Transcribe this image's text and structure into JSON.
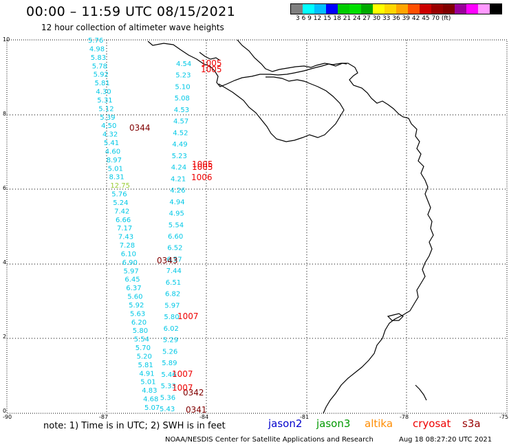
{
  "header": {
    "title": "00:00 – 11:59 UTC 08/15/2021",
    "subtitle": "12 hour collection of altimeter wave heights"
  },
  "legend": {
    "colors": [
      "#7f7f7f",
      "#00ffff",
      "#00bfff",
      "#0000ff",
      "#00cc00",
      "#00e000",
      "#00aa00",
      "#ffff00",
      "#ffd700",
      "#ffa500",
      "#ff5000",
      "#cc0000",
      "#990000",
      "#800000",
      "#990099",
      "#ff00ff",
      "#ff99ff",
      "#000000"
    ],
    "labels": "3  6  9  12 15 18 21 24 27 30 33 36 39 42 45 70 (ft)"
  },
  "axes": {
    "x_ticks": [
      "-90",
      "-87",
      "-84",
      "-81",
      "-78",
      "-75"
    ],
    "y_ticks": [
      "0",
      "2",
      "4",
      "6",
      "8",
      "10"
    ]
  },
  "footer": {
    "note": "note: 1) Time is in UTC; 2) SWH is in feet",
    "sat_jason2": "jason2",
    "sat_jason3": "jason3",
    "sat_altika": "altika",
    "sat_cryosat": "cryosat",
    "sat_s3a": "s3a",
    "credit": "NOAA/NESDIS Center for Satellite Applications and Research",
    "timestamp": "Aug 18 08:27:20 UTC 2021"
  },
  "track_labels": {
    "t0344": "0344",
    "t0343": "0343",
    "t0342": "0342",
    "t0341": "0341",
    "t1005a": "1005",
    "t1005b": "1005",
    "t1005c": "1005",
    "t1005d": "1005",
    "t1006": "1006",
    "t1007a": "1007",
    "t1007b": "1007",
    "t1007c": "1007"
  },
  "measurements_left": [
    "5.76",
    "4.98",
    "5.83",
    "5.78",
    "5.92",
    "5.81",
    "4.30",
    "5.31",
    "5.12",
    "5.39",
    "4.50",
    "4.32",
    "5.41",
    "4.60",
    "8.97",
    "5.01",
    "8.31",
    "12.75",
    "5.76",
    "5.24",
    "7.42",
    "6.66",
    "7.17",
    "7.43",
    "7.28",
    "6.10",
    "6.90",
    "5.97",
    "6.45",
    "6.37",
    "5.60",
    "5.92",
    "5.63",
    "6.20",
    "5.80",
    "5.54",
    "5.70",
    "5.20",
    "5.81",
    "4.91",
    "5.01",
    "4.83",
    "4.68",
    "5.07"
  ],
  "measurements_right": [
    "4.54",
    "5.23",
    "5.10",
    "5.08",
    "4.53",
    "4.57",
    "4.52",
    "4.49",
    "5.23",
    "4.24",
    "4.21",
    "4.26",
    "4.94",
    "4.95",
    "5.54",
    "6.60",
    "6.52",
    "6.57",
    "7.44",
    "6.51",
    "6.82",
    "5.97",
    "5.80",
    "6.02",
    "5.29",
    "5.26",
    "5.89",
    "5.46",
    "5.33",
    "5.36",
    "5.43"
  ]
}
